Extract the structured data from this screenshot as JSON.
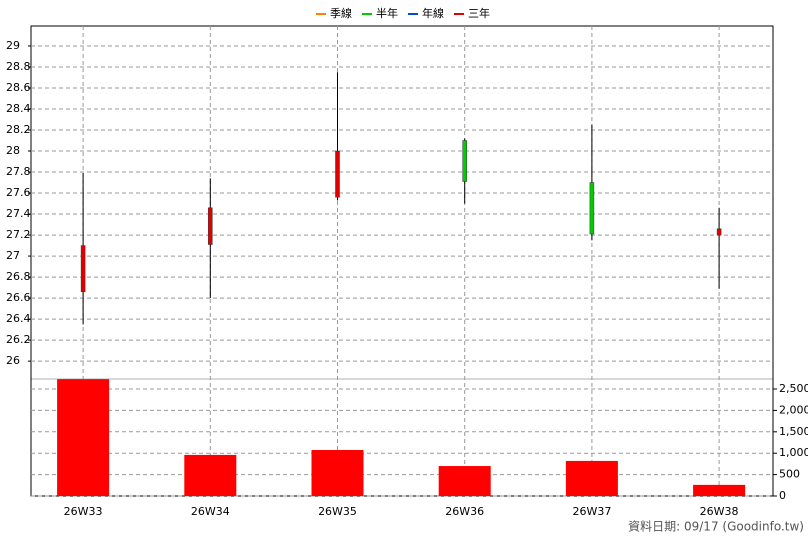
{
  "chart_data": {
    "type": "candlestick",
    "legend": [
      {
        "name": "季線",
        "color": "#ff8000"
      },
      {
        "name": "半年",
        "color": "#00cc00"
      },
      {
        "name": "年線",
        "color": "#0050c8"
      },
      {
        "name": "三年",
        "color": "#e00000"
      }
    ],
    "categories": [
      "26W33",
      "26W34",
      "26W35",
      "26W36",
      "26W37",
      "26W38"
    ],
    "open": [
      26.66,
      27.11,
      27.56,
      28.1,
      27.7,
      27.2
    ],
    "high": [
      27.79,
      27.74,
      28.75,
      28.12,
      28.25,
      27.46
    ],
    "low": [
      26.35,
      26.6,
      27.53,
      27.5,
      27.15,
      26.69
    ],
    "close": [
      27.1,
      27.46,
      28.0,
      27.71,
      27.21,
      27.26
    ],
    "up_color": "#e00000",
    "down_color": "#00cc00",
    "ylim": [
      25.83,
      29.19
    ],
    "yticks": [
      26,
      26.2,
      26.4,
      26.6,
      26.8,
      27,
      27.2,
      27.4,
      27.6,
      27.8,
      28,
      28.2,
      28.4,
      28.6,
      28.8,
      29
    ],
    "volume": [
      2730,
      960,
      1075,
      700,
      820,
      260
    ],
    "volume_color": "#ff0000",
    "y2lim": [
      0,
      2734
    ],
    "y2ticks": [
      0,
      500,
      {
        "value": 1000,
        "label": "1,000"
      },
      {
        "value": 1500,
        "label": "1,500"
      },
      {
        "value": 2000,
        "label": "2,000"
      },
      {
        "value": 2500,
        "label": "2,500"
      }
    ],
    "grid": true,
    "source": "資料日期: 09/17 (Goodinfo.tw)"
  }
}
